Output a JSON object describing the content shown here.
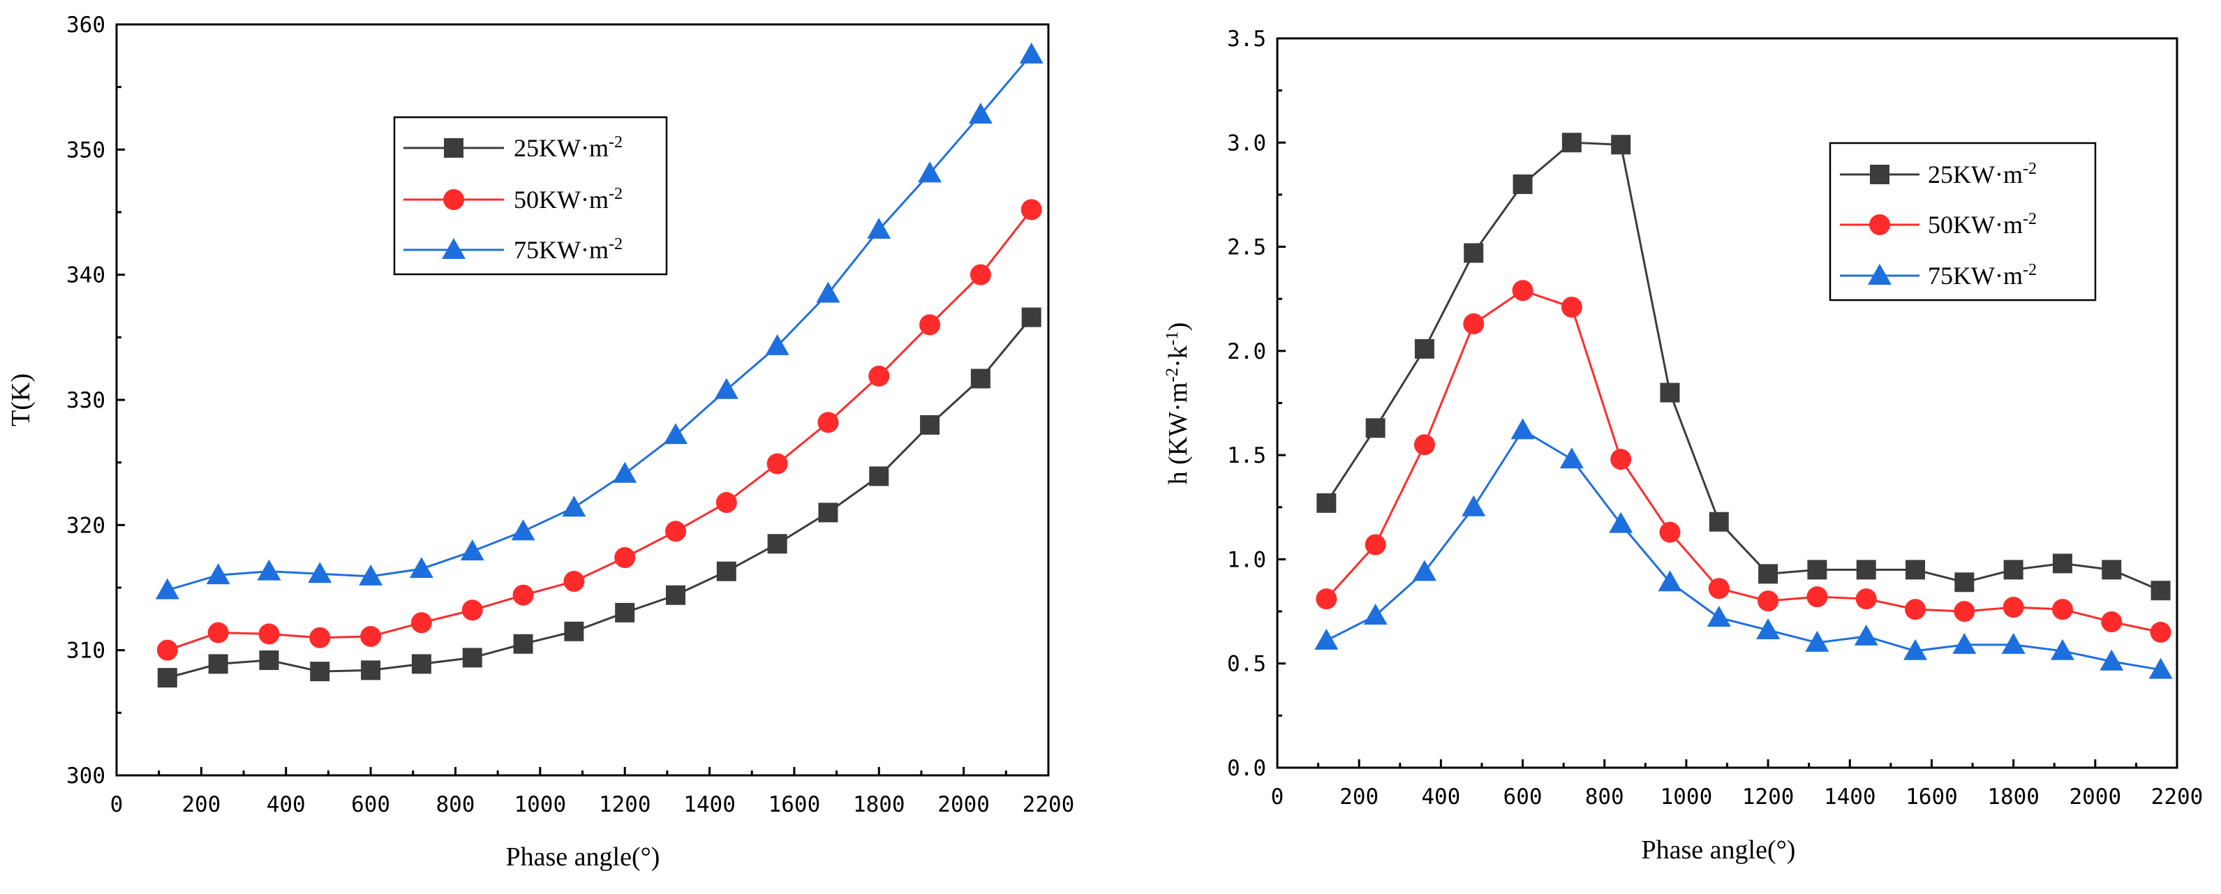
{
  "chart_data": [
    {
      "type": "line",
      "title": "",
      "xlabel": "Phase angle(°)",
      "ylabel": "T(K)",
      "xlim": [
        0,
        2200
      ],
      "ylim": [
        300,
        360
      ],
      "xticks": [
        0,
        200,
        400,
        600,
        800,
        1000,
        1200,
        1400,
        1600,
        1800,
        2000,
        2200
      ],
      "yticks": [
        300,
        310,
        320,
        330,
        340,
        350,
        360
      ],
      "legend_position": "top-center",
      "x": [
        120,
        240,
        360,
        480,
        600,
        720,
        840,
        960,
        1080,
        1200,
        1320,
        1440,
        1560,
        1680,
        1800,
        1920,
        2040,
        2160
      ],
      "series": [
        {
          "name": "25KW·m-2",
          "label_main": "25KW·m",
          "label_sup": "-2",
          "color": "#3c3c3c",
          "marker": "square",
          "values": [
            307.8,
            308.9,
            309.2,
            308.3,
            308.4,
            308.9,
            309.4,
            310.5,
            311.5,
            313.0,
            314.4,
            316.3,
            318.5,
            321.0,
            323.9,
            328.0,
            331.7,
            336.6
          ]
        },
        {
          "name": "50KW·m-2",
          "label_main": "50KW·m",
          "label_sup": "-2",
          "color": "#ff2b2b",
          "marker": "circle",
          "values": [
            310.0,
            311.4,
            311.3,
            311.0,
            311.1,
            312.2,
            313.2,
            314.4,
            315.5,
            317.4,
            319.5,
            321.8,
            324.9,
            328.2,
            331.9,
            336.0,
            340.0,
            345.2
          ]
        },
        {
          "name": "75KW·m-2",
          "label_main": "75KW·m",
          "label_sup": "-2",
          "color": "#1e6fde",
          "marker": "triangle",
          "values": [
            314.8,
            316.0,
            316.3,
            316.1,
            315.9,
            316.5,
            317.9,
            319.5,
            321.4,
            324.1,
            327.2,
            330.8,
            334.3,
            338.5,
            343.6,
            348.1,
            352.8,
            357.6
          ]
        }
      ]
    },
    {
      "type": "line",
      "title": "",
      "xlabel": "Phase angle(°)",
      "ylabel": "h (KW·m-2·k-1)",
      "ylabel_parts": [
        "h (KW·m",
        "-2",
        "·k",
        "-1",
        ")"
      ],
      "xlim": [
        0,
        2200
      ],
      "ylim": [
        0.0,
        3.5
      ],
      "xticks": [
        0,
        200,
        400,
        600,
        800,
        1000,
        1200,
        1400,
        1600,
        1800,
        2000,
        2200
      ],
      "yticks": [
        "0.0",
        "0.5",
        "1.0",
        "1.5",
        "2.0",
        "2.5",
        "3.0",
        "3.5"
      ],
      "legend_position": "top-right",
      "x": [
        120,
        240,
        360,
        480,
        600,
        720,
        840,
        960,
        1080,
        1200,
        1320,
        1440,
        1560,
        1680,
        1800,
        1920,
        2040,
        2160
      ],
      "series": [
        {
          "name": "25KW·m-2",
          "label_main": "25KW·m",
          "label_sup": "-2",
          "color": "#3c3c3c",
          "marker": "square",
          "values": [
            1.27,
            1.63,
            2.01,
            2.47,
            2.8,
            3.0,
            2.99,
            1.8,
            1.18,
            0.93,
            0.95,
            0.95,
            0.95,
            0.89,
            0.95,
            0.98,
            0.95,
            0.85
          ]
        },
        {
          "name": "50KW·m-2",
          "label_main": "50KW·m",
          "label_sup": "-2",
          "color": "#ff2b2b",
          "marker": "circle",
          "values": [
            0.81,
            1.07,
            1.55,
            2.13,
            2.29,
            2.21,
            1.48,
            1.13,
            0.86,
            0.8,
            0.82,
            0.81,
            0.76,
            0.75,
            0.77,
            0.76,
            0.7,
            0.65
          ]
        },
        {
          "name": "75KW·m-2",
          "label_main": "75KW·m",
          "label_sup": "-2",
          "color": "#1e6fde",
          "marker": "triangle",
          "values": [
            0.61,
            0.73,
            0.94,
            1.25,
            1.62,
            1.48,
            1.17,
            0.89,
            0.72,
            0.66,
            0.6,
            0.63,
            0.56,
            0.59,
            0.59,
            0.56,
            0.51,
            0.47
          ]
        }
      ]
    }
  ]
}
